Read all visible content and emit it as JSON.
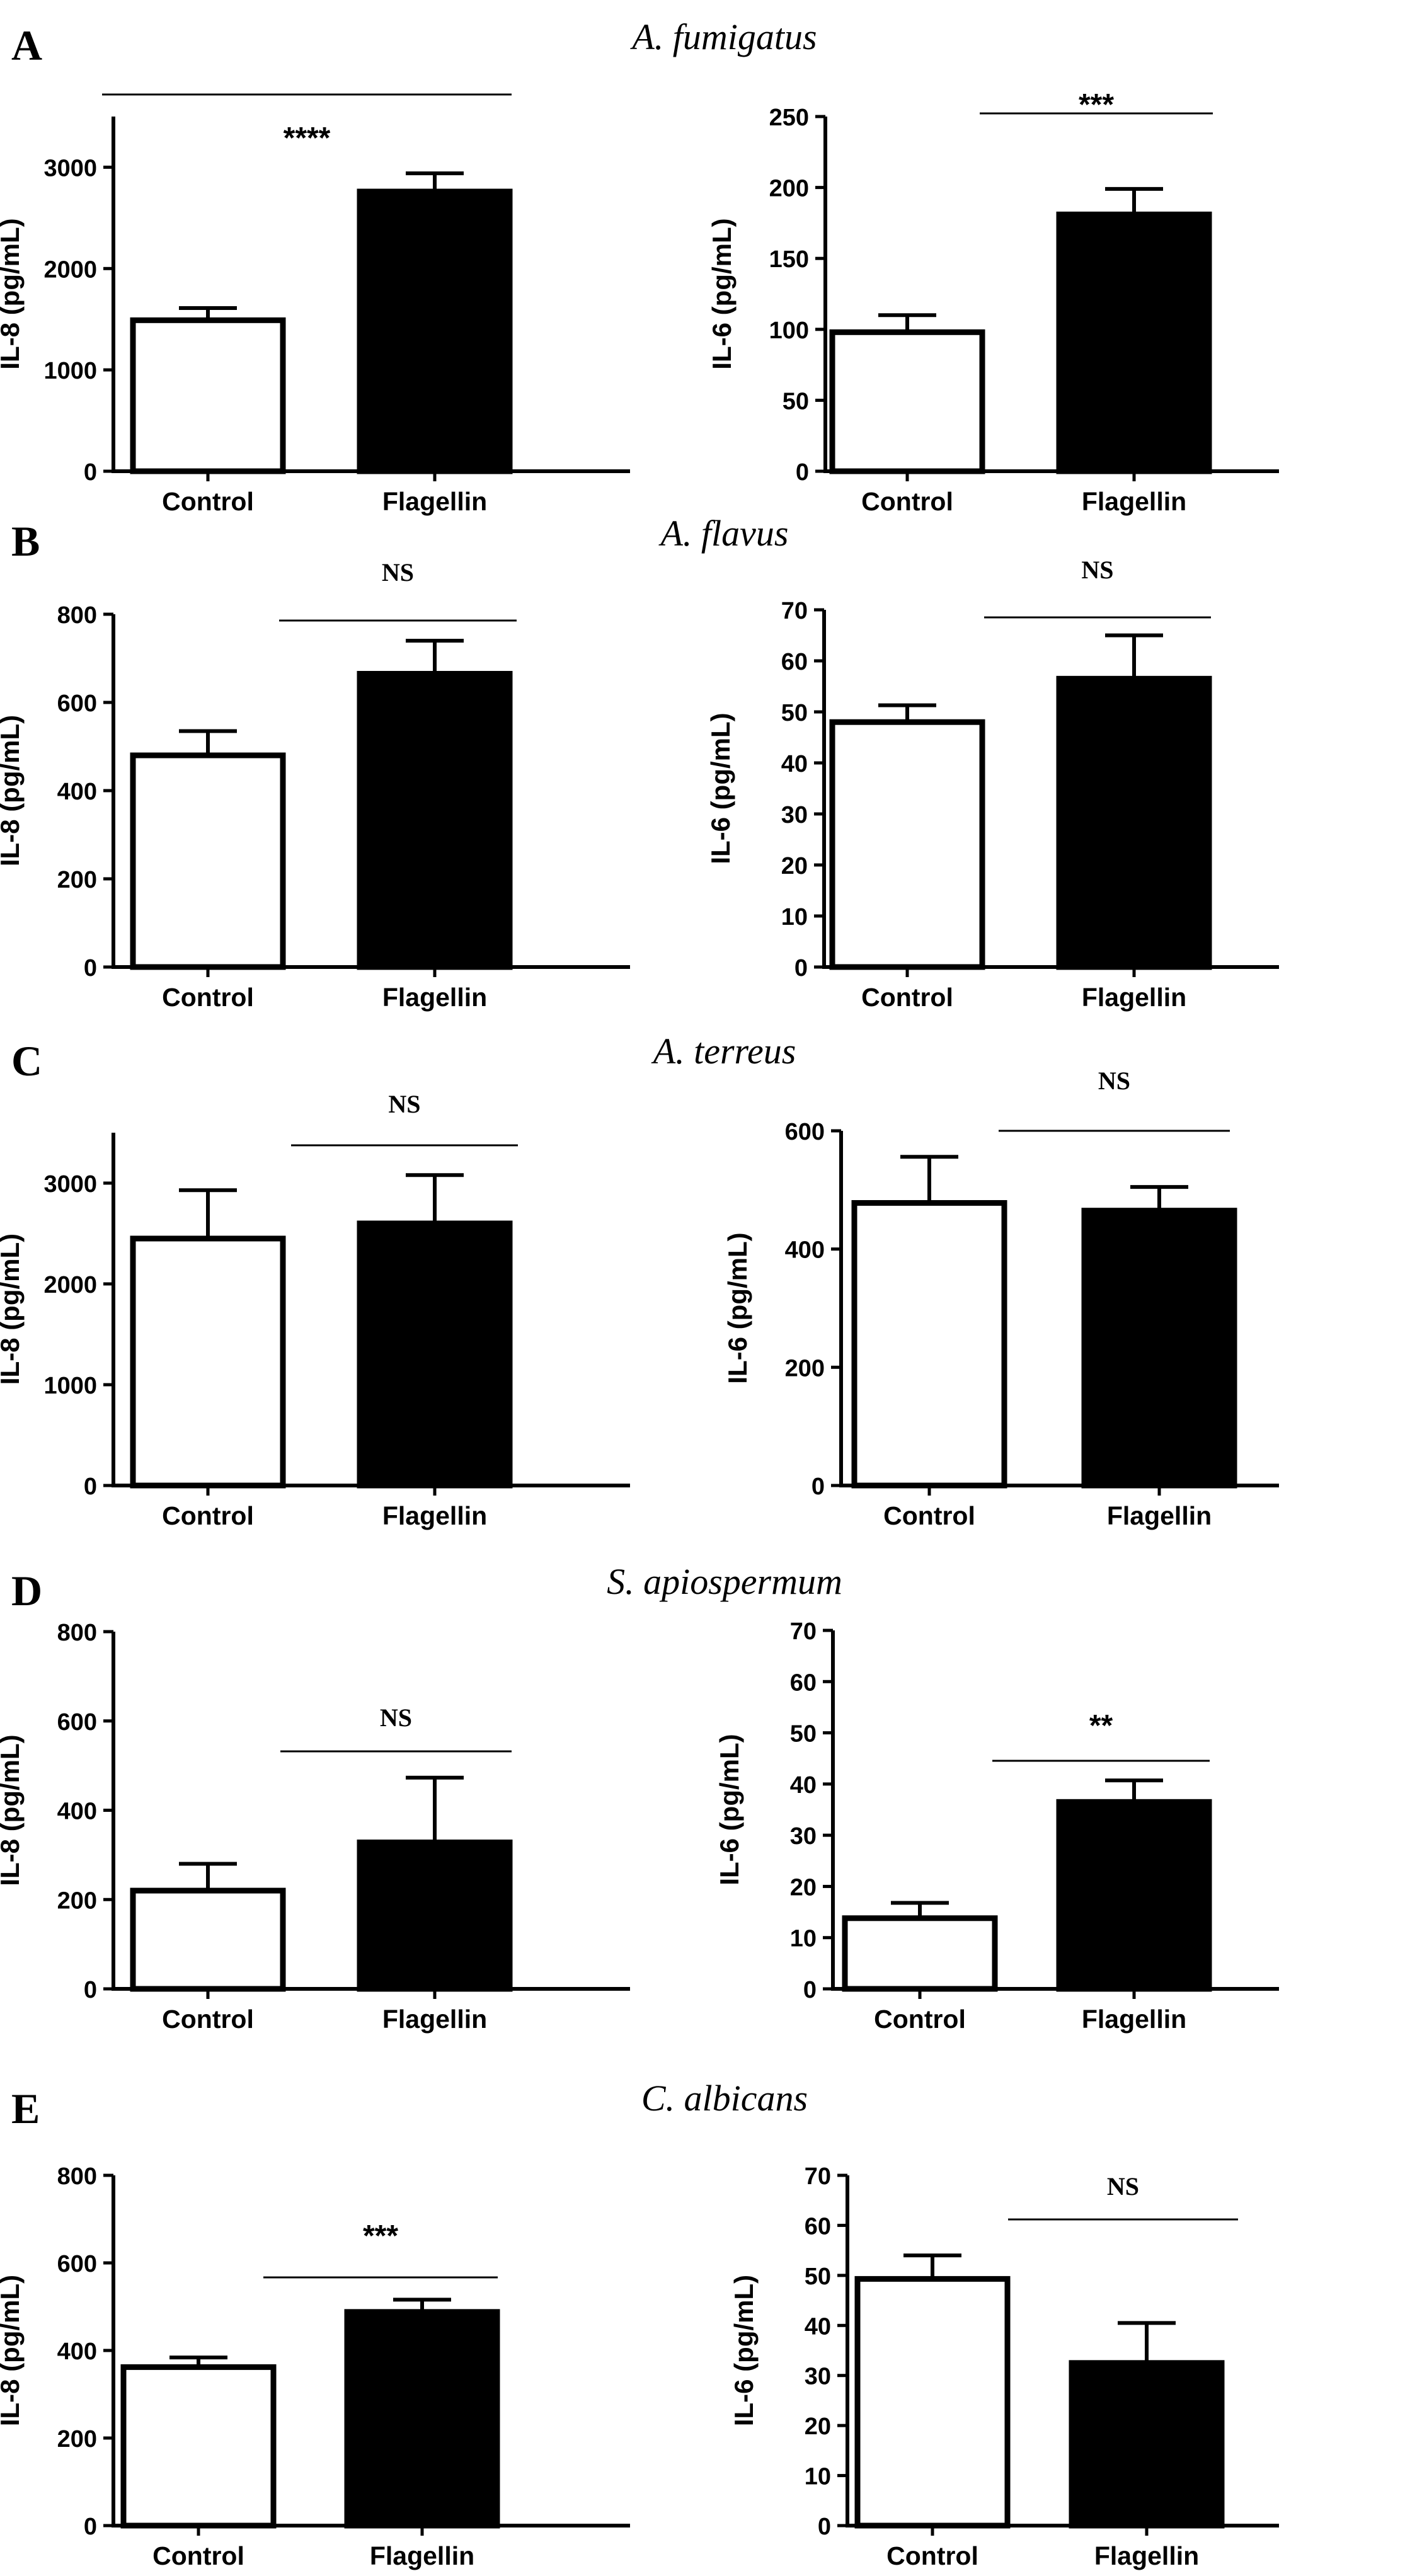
{
  "panels": [
    {
      "letter": "A",
      "organism": "A. fumigatus"
    },
    {
      "letter": "B",
      "organism": "A. flavus"
    },
    {
      "letter": "C",
      "organism": "A. terreus"
    },
    {
      "letter": "D",
      "organism": "S. apiospermum"
    },
    {
      "letter": "E",
      "organism": "C. albicans"
    }
  ],
  "colors": {
    "control": "#ffffff",
    "flagellin": "#000000",
    "axis": "#000000"
  },
  "chart_data": [
    {
      "id": "A-IL8",
      "panel": "A",
      "type": "bar",
      "title": "A. fumigatus",
      "ylabel": "IL-8 (pg/mL)",
      "categories": [
        "Control",
        "Flagellin"
      ],
      "values": [
        1490,
        2760
      ],
      "errors": [
        120,
        180
      ],
      "ylim": [
        0,
        3500
      ],
      "yticks": [
        0,
        1000,
        2000,
        3000
      ],
      "significance": "****"
    },
    {
      "id": "A-IL6",
      "panel": "A",
      "type": "bar",
      "title": "A. fumigatus",
      "ylabel": "IL-6 (pg/mL)",
      "categories": [
        "Control",
        "Flagellin"
      ],
      "values": [
        98,
        181
      ],
      "errors": [
        12,
        18
      ],
      "ylim": [
        0,
        250
      ],
      "yticks": [
        0,
        50,
        100,
        150,
        200,
        250
      ],
      "significance": "***"
    },
    {
      "id": "B-IL8",
      "panel": "B",
      "type": "bar",
      "title": "A. flavus",
      "ylabel": "IL-8 (pg/mL)",
      "categories": [
        "Control",
        "Flagellin"
      ],
      "values": [
        480,
        665
      ],
      "errors": [
        55,
        75
      ],
      "ylim": [
        0,
        800
      ],
      "yticks": [
        0,
        200,
        400,
        600,
        800
      ],
      "significance": "NS"
    },
    {
      "id": "B-IL6",
      "panel": "B",
      "type": "bar",
      "title": "A. flavus",
      "ylabel": "IL-6 (pg/mL)",
      "categories": [
        "Control",
        "Flagellin"
      ],
      "values": [
        48,
        56.5
      ],
      "errors": [
        3.3,
        8.5
      ],
      "ylim": [
        0,
        70
      ],
      "yticks": [
        0,
        10,
        20,
        30,
        40,
        50,
        60,
        70
      ],
      "significance": "NS"
    },
    {
      "id": "C-IL8",
      "panel": "C",
      "type": "bar",
      "title": "A. terreus",
      "ylabel": "IL-8 (pg/mL)",
      "categories": [
        "Control",
        "Flagellin"
      ],
      "values": [
        2450,
        2600
      ],
      "errors": [
        480,
        480
      ],
      "ylim": [
        0,
        3500
      ],
      "yticks": [
        0,
        1000,
        2000,
        3000
      ],
      "significance": "NS"
    },
    {
      "id": "C-IL6",
      "panel": "C",
      "type": "bar",
      "title": "A. terreus",
      "ylabel": "IL-6 (pg/mL)",
      "categories": [
        "Control",
        "Flagellin"
      ],
      "values": [
        478,
        465
      ],
      "errors": [
        78,
        40
      ],
      "ylim": [
        0,
        600
      ],
      "yticks": [
        0,
        200,
        400,
        600
      ],
      "significance": "NS"
    },
    {
      "id": "D-IL8",
      "panel": "D",
      "type": "bar",
      "title": "S. apiospermum",
      "ylabel": "IL-8 (pg/mL)",
      "categories": [
        "Control",
        "Flagellin"
      ],
      "values": [
        220,
        328
      ],
      "errors": [
        60,
        145
      ],
      "ylim": [
        0,
        800
      ],
      "yticks": [
        0,
        200,
        400,
        600,
        800
      ],
      "significance": "NS"
    },
    {
      "id": "D-IL6",
      "panel": "D",
      "type": "bar",
      "title": "S. apiospermum",
      "ylabel": "IL-6 (pg/mL)",
      "categories": [
        "Control",
        "Flagellin"
      ],
      "values": [
        13.8,
        36.5
      ],
      "errors": [
        3,
        4.2
      ],
      "ylim": [
        0,
        70
      ],
      "yticks": [
        0,
        10,
        20,
        30,
        40,
        50,
        60,
        70
      ],
      "significance": "**"
    },
    {
      "id": "E-IL8",
      "panel": "E",
      "type": "bar",
      "title": "C. albicans",
      "ylabel": "IL-8 (pg/mL)",
      "categories": [
        "Control",
        "Flagellin"
      ],
      "values": [
        362,
        488
      ],
      "errors": [
        22,
        28
      ],
      "ylim": [
        0,
        800
      ],
      "yticks": [
        0,
        200,
        400,
        600,
        800
      ],
      "significance": "***"
    },
    {
      "id": "E-IL6",
      "panel": "E",
      "type": "bar",
      "title": "C. albicans",
      "ylabel": "IL-6 (pg/mL)",
      "categories": [
        "Control",
        "Flagellin"
      ],
      "values": [
        49.3,
        32.5
      ],
      "errors": [
        4.7,
        8
      ],
      "ylim": [
        0,
        70
      ],
      "yticks": [
        0,
        10,
        20,
        30,
        40,
        50,
        60,
        70
      ],
      "significance": "NS"
    }
  ]
}
